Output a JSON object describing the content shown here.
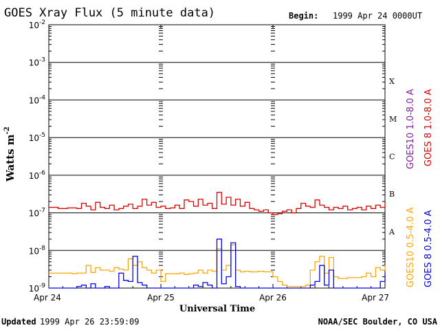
{
  "header": {
    "title": "GOES Xray Flux (5 minute data)",
    "begin_label": "Begin:",
    "begin_value": "1999 Apr 24 0000UT"
  },
  "footer": {
    "updated_label": "Updated",
    "updated_value": "1999 Apr 26 23:59:09",
    "credit": "NOAA/SEC Boulder, CO USA"
  },
  "chart_data": {
    "type": "line",
    "title": "GOES Xray Flux (5 minute data)",
    "xlabel": "Universal Time",
    "ylabel": "Watts m",
    "ylabel_sup": "-2",
    "xlim": [
      0,
      72
    ],
    "x_unit": "hours since 1999 Apr 24 0000UT",
    "ylim": [
      1e-09,
      0.01
    ],
    "yscale": "log",
    "y_ticks": [
      {
        "base": "10",
        "exp": "-2",
        "value": 0.01
      },
      {
        "base": "10",
        "exp": "-3",
        "value": 0.001
      },
      {
        "base": "10",
        "exp": "-4",
        "value": 0.0001
      },
      {
        "base": "10",
        "exp": "-5",
        "value": 1e-05
      },
      {
        "base": "10",
        "exp": "-6",
        "value": 1e-06
      },
      {
        "base": "10",
        "exp": "-7",
        "value": 1e-07
      },
      {
        "base": "10",
        "exp": "-8",
        "value": 1e-08
      },
      {
        "base": "10",
        "exp": "-9",
        "value": 1e-09
      }
    ],
    "x_ticks": [
      {
        "label": "Apr 24",
        "hours": 0
      },
      {
        "label": "Apr 25",
        "hours": 24
      },
      {
        "label": "Apr 26",
        "hours": 48
      },
      {
        "label": "Apr 27",
        "hours": 72
      }
    ],
    "flare_classes": [
      {
        "label": "X",
        "low": 0.0001,
        "high": 0.001
      },
      {
        "label": "M",
        "low": 1e-05,
        "high": 0.0001
      },
      {
        "label": "C",
        "low": 1e-06,
        "high": 1e-05
      },
      {
        "label": "B",
        "low": 1e-07,
        "high": 1e-06
      },
      {
        "label": "A",
        "low": 1e-08,
        "high": 1e-07
      }
    ],
    "grid": true,
    "legend_position": "right",
    "series": [
      {
        "name": "GOES10 1.0-8.0 A",
        "color": "#7b1fa2",
        "x": [],
        "y": []
      },
      {
        "name": "GOES 8 1.0-8.0 A",
        "color": "#dd0000",
        "x": [
          0,
          2,
          4,
          6,
          7,
          8,
          9,
          10,
          11,
          12,
          13,
          14,
          15,
          16,
          17,
          18,
          19,
          20,
          21,
          22,
          23,
          24,
          25,
          26,
          27,
          28,
          29,
          30,
          31,
          32,
          33,
          34,
          35,
          36,
          37,
          38,
          39,
          40,
          41,
          42,
          43,
          44,
          45,
          46,
          47,
          48,
          49,
          50,
          51,
          52,
          53,
          54,
          55,
          56,
          57,
          58,
          59,
          60,
          61,
          62,
          63,
          64,
          65,
          66,
          67,
          68,
          69,
          70,
          71,
          72
        ],
        "y": [
          1.4e-07,
          1.3e-07,
          1.35e-07,
          1.3e-07,
          1.8e-07,
          1.5e-07,
          1.2e-07,
          1.9e-07,
          1.4e-07,
          1.3e-07,
          1.6e-07,
          1.2e-07,
          1.3e-07,
          1.5e-07,
          1.7e-07,
          1.3e-07,
          1.5e-07,
          2.3e-07,
          1.6e-07,
          1.9e-07,
          1.4e-07,
          1.5e-07,
          1.3e-07,
          1.35e-07,
          1.6e-07,
          1.3e-07,
          2.2e-07,
          2e-07,
          1.5e-07,
          2.3e-07,
          1.6e-07,
          1.8e-07,
          1.3e-07,
          3.5e-07,
          1.7e-07,
          2.6e-07,
          1.6e-07,
          2.3e-07,
          1.5e-07,
          1.9e-07,
          1.3e-07,
          1.2e-07,
          1.1e-07,
          1.2e-07,
          1e-07,
          9e-08,
          9.5e-08,
          1.1e-07,
          1.2e-07,
          1e-07,
          1.3e-07,
          1.8e-07,
          1.5e-07,
          1.4e-07,
          2.2e-07,
          1.6e-07,
          1.4e-07,
          1.2e-07,
          1.4e-07,
          1.3e-07,
          1.5e-07,
          1.2e-07,
          1.3e-07,
          1.4e-07,
          1.2e-07,
          1.5e-07,
          1.3e-07,
          1.6e-07,
          1.4e-07,
          1.9e-07
        ]
      },
      {
        "name": "GOES10 0.5-4.0 A",
        "color": "#ffa500",
        "x": [
          0,
          1,
          2,
          3,
          4,
          5,
          6,
          7,
          8,
          9,
          10,
          11,
          12,
          13,
          14,
          15,
          16,
          17,
          18,
          19,
          20,
          21,
          22,
          23,
          24,
          25,
          26,
          27,
          28,
          29,
          30,
          31,
          32,
          33,
          34,
          35,
          36,
          37,
          38,
          39,
          40,
          41,
          42,
          43,
          44,
          45,
          46,
          47,
          48,
          49,
          50,
          51,
          52,
          53,
          54,
          55,
          56,
          57,
          58,
          59,
          60,
          61,
          62,
          63,
          64,
          65,
          66,
          67,
          68,
          69,
          70,
          71,
          72
        ],
        "y": [
          2.5e-09,
          2.5e-09,
          2.5e-09,
          2.5e-09,
          2.5e-09,
          2.4e-09,
          2.5e-09,
          2.5e-09,
          4e-09,
          2.6e-09,
          3.5e-09,
          3e-09,
          3e-09,
          2.8e-09,
          3.5e-09,
          3.2e-09,
          3e-09,
          6e-09,
          4e-09,
          5e-09,
          3.5e-09,
          3e-09,
          2.5e-09,
          3e-09,
          1.5e-09,
          2.4e-09,
          2.4e-09,
          2.4e-09,
          2.5e-09,
          2.3e-09,
          2.4e-09,
          2.5e-09,
          3e-09,
          2.5e-09,
          3e-09,
          2.8e-09,
          1.1e-08,
          3e-09,
          4e-09,
          1.4e-08,
          3e-09,
          2.7e-09,
          2.8e-09,
          2.7e-09,
          2.7e-09,
          2.8e-09,
          2.7e-09,
          2.7e-09,
          2e-09,
          1.5e-09,
          1.2e-09,
          1.1e-09,
          1.1e-09,
          1.1e-09,
          1.1e-09,
          1.2e-09,
          3e-09,
          5e-09,
          7e-09,
          2.5e-09,
          6.5e-09,
          2e-09,
          1.8e-09,
          1.8e-09,
          1.9e-09,
          1.9e-09,
          1.9e-09,
          2e-09,
          2.5e-09,
          2e-09,
          3.5e-09,
          3e-09,
          4e-09
        ]
      },
      {
        "name": "GOES 8 0.5-4.0 A",
        "color": "#0000ee",
        "x": [
          0,
          1,
          2,
          3,
          4,
          5,
          6,
          7,
          8,
          9,
          10,
          11,
          12,
          13,
          14,
          15,
          16,
          17,
          18,
          19,
          20,
          21,
          22,
          23,
          24,
          25,
          26,
          27,
          28,
          29,
          30,
          31,
          32,
          33,
          34,
          35,
          36,
          37,
          38,
          39,
          40,
          41,
          42,
          43,
          44,
          45,
          46,
          47,
          48,
          49,
          50,
          51,
          52,
          53,
          54,
          55,
          56,
          57,
          58,
          59,
          60,
          61,
          62,
          63,
          64,
          65,
          66,
          67,
          68,
          69,
          70,
          71,
          72
        ],
        "y": [
          1e-09,
          1e-09,
          1e-09,
          1e-09,
          1e-09,
          1e-09,
          1.1e-09,
          1.2e-09,
          1e-09,
          1.3e-09,
          1e-09,
          1e-09,
          1.1e-09,
          1e-09,
          1e-09,
          2.5e-09,
          1.6e-09,
          1.5e-09,
          7e-09,
          1.4e-09,
          1.2e-09,
          1e-09,
          1e-09,
          1e-09,
          1e-09,
          1e-09,
          1e-09,
          1e-09,
          1e-09,
          1e-09,
          1e-09,
          1.2e-09,
          1.1e-09,
          1.4e-09,
          1.2e-09,
          1e-09,
          2e-08,
          1.3e-09,
          2e-09,
          1.6e-08,
          1.1e-09,
          1e-09,
          1e-09,
          1e-09,
          1e-09,
          1e-09,
          1e-09,
          1e-09,
          1e-09,
          1e-09,
          1e-09,
          1e-09,
          1e-09,
          1e-09,
          1e-09,
          1e-09,
          1.2e-09,
          1.5e-09,
          4e-09,
          1.2e-09,
          3e-09,
          1e-09,
          1e-09,
          1e-09,
          1e-09,
          1e-09,
          1e-09,
          1e-09,
          1e-09,
          1e-09,
          1e-09,
          1.5e-09,
          2.5e-09
        ]
      }
    ]
  }
}
